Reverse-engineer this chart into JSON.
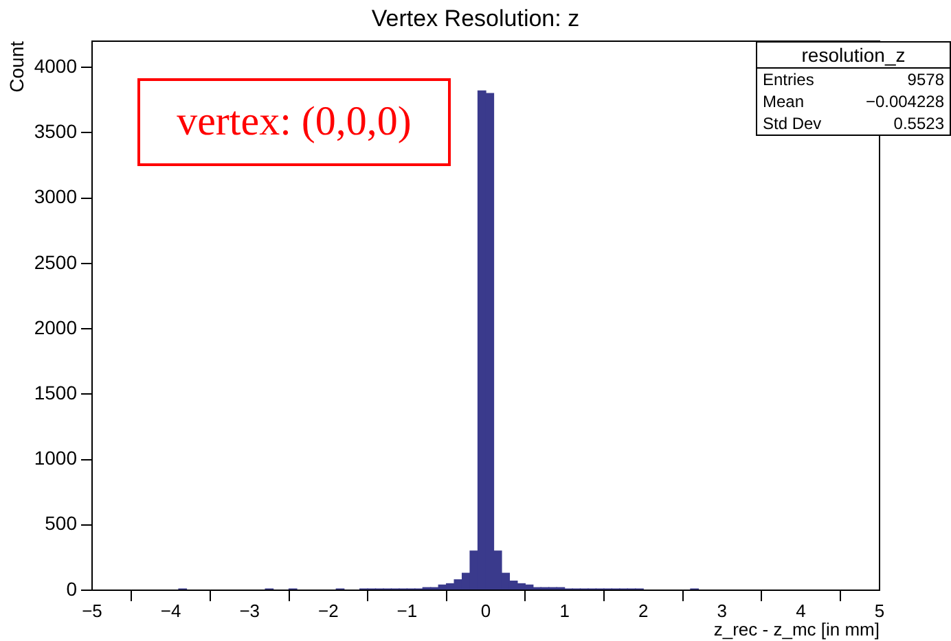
{
  "chart_data": {
    "type": "histogram",
    "title": "Vertex Resolution: z",
    "xlabel": "z_rec - z_mc [in mm]",
    "ylabel": "Count",
    "bins": [
      -5,
      -4.9,
      -4.8,
      -4.7,
      -4.6,
      -4.5,
      -4.4,
      -4.3,
      -4.2,
      -4.1,
      -4,
      -3.9,
      -3.8,
      -3.7,
      -3.6,
      -3.5,
      -3.4,
      -3.3,
      -3.2,
      -3.1,
      -3,
      -2.9,
      -2.8,
      -2.7,
      -2.6,
      -2.5,
      -2.4,
      -2.3,
      -2.2,
      -2.1,
      -2,
      -1.9,
      -1.8,
      -1.7,
      -1.6,
      -1.5,
      -1.4,
      -1.3,
      -1.2,
      -1.1,
      -1,
      -0.9,
      -0.8,
      -0.7,
      -0.6,
      -0.5,
      -0.4,
      -0.3,
      -0.2,
      -0.1,
      0,
      0.1,
      0.2,
      0.3,
      0.4,
      0.5,
      0.6,
      0.7,
      0.8,
      0.9,
      1,
      1.1,
      1.2,
      1.3,
      1.4,
      1.5,
      1.6,
      1.7,
      1.8,
      1.9,
      2,
      2.1,
      2.2,
      2.3,
      2.4,
      2.5,
      2.6,
      2.7,
      2.8,
      2.9,
      3,
      3.1,
      3.2,
      3.3,
      3.4,
      3.5,
      3.6,
      3.7,
      3.8,
      3.9,
      4,
      4.1,
      4.2,
      4.3,
      4.4,
      4.5,
      4.6,
      4.7,
      4.8,
      4.9,
      5
    ],
    "values": [
      0,
      0,
      0,
      0,
      0,
      0,
      0,
      0,
      0,
      0,
      0,
      10,
      0,
      0,
      0,
      0,
      0,
      0,
      0,
      0,
      0,
      0,
      10,
      0,
      0,
      10,
      0,
      0,
      0,
      0,
      0,
      10,
      0,
      0,
      10,
      10,
      10,
      10,
      10,
      10,
      10,
      10,
      20,
      20,
      40,
      50,
      80,
      130,
      300,
      3820,
      3800,
      300,
      130,
      70,
      50,
      40,
      20,
      20,
      20,
      20,
      10,
      10,
      10,
      10,
      10,
      10,
      10,
      10,
      10,
      10,
      0,
      0,
      0,
      0,
      0,
      0,
      10,
      0,
      0,
      0,
      0,
      0,
      0,
      0,
      0,
      0,
      0,
      0,
      0,
      0,
      0,
      0,
      0,
      0,
      0,
      0,
      0,
      0,
      0,
      0
    ],
    "color": "#3a3a8c",
    "xlim": [
      -5,
      5
    ],
    "xticks": [
      {
        "value": -5,
        "label": "−5"
      },
      {
        "value": -4,
        "label": "−4"
      },
      {
        "value": -3,
        "label": "−3"
      },
      {
        "value": -2,
        "label": "−2"
      },
      {
        "value": -1,
        "label": "−1"
      },
      0,
      1,
      2,
      3,
      4,
      5
    ],
    "ylim": [
      0,
      4200
    ],
    "yticks": [
      0,
      500,
      1000,
      1500,
      2000,
      2500,
      3000,
      3500,
      4000
    ],
    "grid": false,
    "legend": false,
    "annotations": [
      "vertex: (0,0,0)",
      "resolution_z",
      "Entries",
      "9578",
      "Mean",
      "−0.004228",
      "Std Dev",
      "0.5523"
    ]
  }
}
